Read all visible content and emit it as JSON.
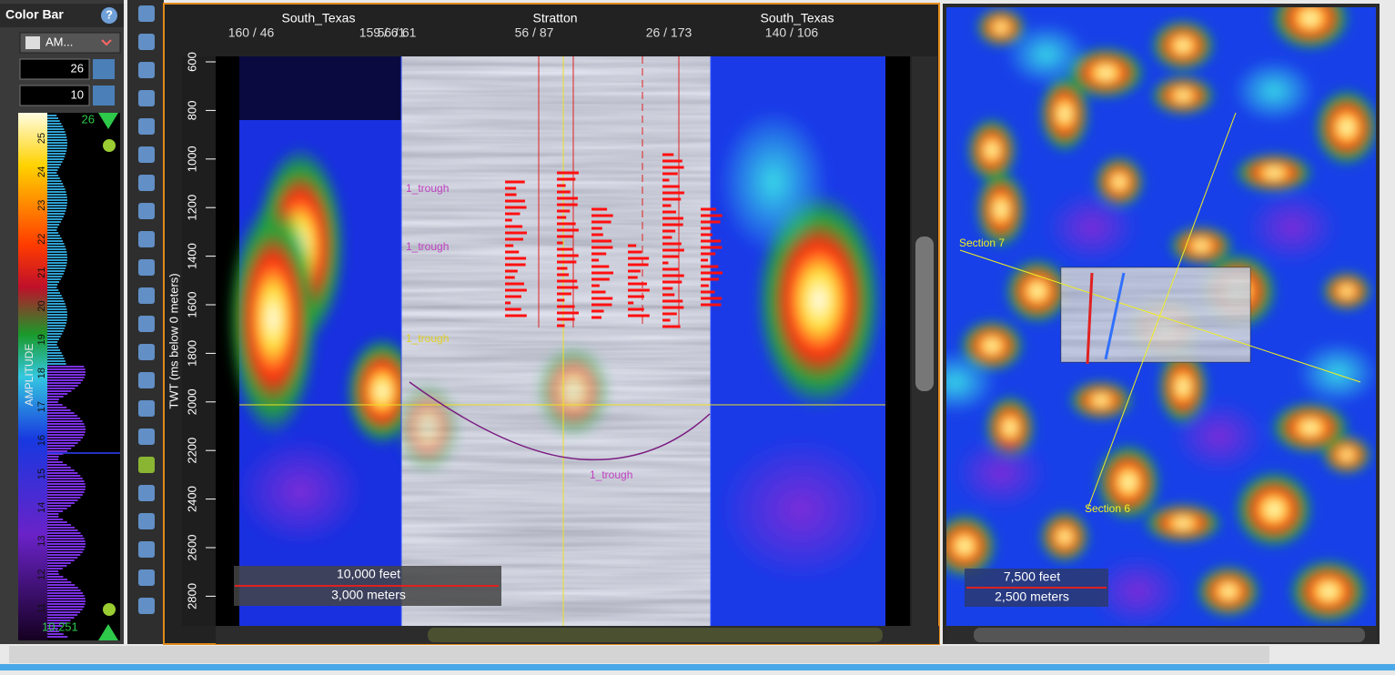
{
  "color_bar": {
    "title": "Color Bar",
    "help": "?",
    "attribute": "AM...",
    "max": 26,
    "min": 10,
    "axis_label": "AMPLITUDE",
    "ticks": [
      25,
      24,
      23,
      22,
      21,
      20,
      19,
      18,
      17,
      16,
      15,
      14,
      13,
      12,
      11
    ],
    "top_marker": 26,
    "bottom_marker": 10.251
  },
  "section_view": {
    "top_labels": [
      "South_Texas",
      "Stratton",
      "South_Texas"
    ],
    "well_ids": [
      "160 / 46",
      "159 / 61",
      "56 / 61",
      "56 / 87",
      "26 / 173",
      "140 / 106"
    ],
    "y_axis_label": "TWT (ms below 0 meters)",
    "y_ticks": [
      600,
      800,
      1000,
      1200,
      1400,
      1600,
      1800,
      2000,
      2200,
      2400,
      2600,
      2800
    ],
    "horizons": [
      "1_trough",
      "1_trough",
      "1_trough",
      "1_trough"
    ],
    "scale": [
      "10,000 feet",
      "3,000 meters"
    ]
  },
  "map_view": {
    "sections": [
      "Section 7",
      "Section 6"
    ],
    "scale": [
      "7,500 feet",
      "2,500 meters"
    ]
  }
}
